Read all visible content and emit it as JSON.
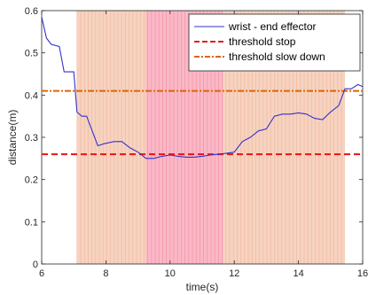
{
  "chart_data": {
    "type": "line",
    "xlabel": "time(s)",
    "ylabel": "distance(m)",
    "xlim": [
      6,
      16
    ],
    "ylim": [
      0,
      0.6
    ],
    "xticks": [
      6,
      8,
      10,
      12,
      14,
      16
    ],
    "yticks": [
      0,
      0.1,
      0.2,
      0.3,
      0.4,
      0.5,
      0.6
    ],
    "tick_labels_x": [
      "6",
      "8",
      "10",
      "12",
      "14",
      "16"
    ],
    "tick_labels_y": [
      "0",
      "0.1",
      "0.2",
      "0.3",
      "0.4",
      "0.5",
      "0.6"
    ],
    "grid": false,
    "legend_position": "top-right",
    "series": [
      {
        "name": "wrist - end effector",
        "color": "#3333cc",
        "style": "solid",
        "x": [
          6.0,
          6.15,
          6.3,
          6.55,
          6.7,
          7.0,
          7.1,
          7.25,
          7.4,
          7.6,
          7.75,
          7.95,
          8.25,
          8.5,
          8.75,
          9.0,
          9.25,
          9.5,
          9.75,
          10.0,
          10.25,
          10.5,
          10.75,
          11.0,
          11.25,
          11.5,
          11.75,
          12.0,
          12.25,
          12.5,
          12.75,
          13.0,
          13.25,
          13.5,
          13.75,
          14.0,
          14.25,
          14.5,
          14.75,
          15.0,
          15.25,
          15.45,
          15.65,
          15.85,
          16.0
        ],
        "y": [
          0.585,
          0.535,
          0.52,
          0.515,
          0.455,
          0.455,
          0.36,
          0.35,
          0.35,
          0.31,
          0.28,
          0.285,
          0.29,
          0.29,
          0.275,
          0.265,
          0.25,
          0.25,
          0.255,
          0.258,
          0.255,
          0.253,
          0.253,
          0.255,
          0.258,
          0.26,
          0.262,
          0.265,
          0.29,
          0.3,
          0.315,
          0.32,
          0.35,
          0.355,
          0.355,
          0.358,
          0.355,
          0.345,
          0.342,
          0.36,
          0.375,
          0.415,
          0.415,
          0.425,
          0.42
        ]
      },
      {
        "name": "threshold stop",
        "color": "#ee1111",
        "style": "dashed",
        "y": 0.26
      },
      {
        "name": "threshold slow down",
        "color": "#dd6600",
        "style": "dash-dot",
        "y": 0.41
      }
    ],
    "shaded_regions": [
      {
        "zone": "slow-down",
        "x_start": 7.1,
        "x_end": 15.45,
        "color": "#f6d3c0"
      },
      {
        "zone": "stop",
        "x_start": 9.25,
        "x_end": 11.65,
        "color": "#f9b8c6"
      }
    ]
  }
}
